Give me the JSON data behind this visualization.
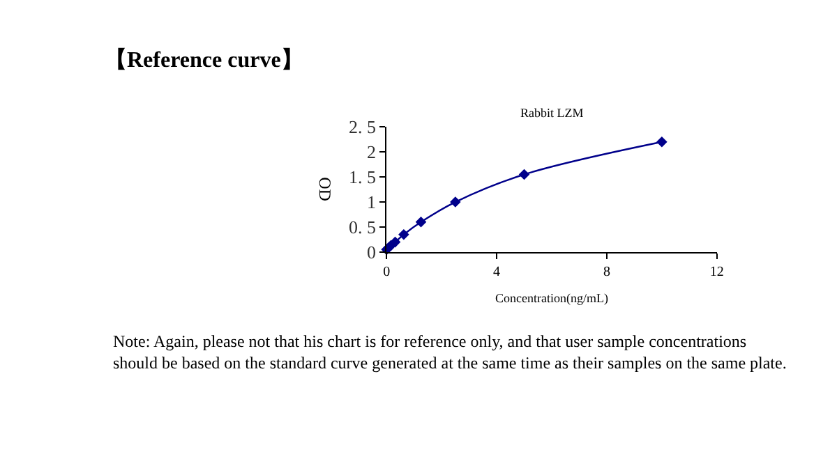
{
  "chart_data": {
    "type": "line",
    "title": "Rabbit LZM",
    "xlabel": "Concentration(ng/mL)",
    "ylabel": "OD",
    "annotations": [
      "【Reference curve】",
      "Note: Again, please not that his chart is for reference only, and that user sample concentrations should be based on the standard curve generated at the same time as their samples on the same plate."
    ],
    "x": [
      0,
      0.078,
      0.156,
      0.3125,
      0.625,
      1.25,
      2.5,
      5,
      10
    ],
    "series": [
      {
        "color": "#00008b",
        "values": [
          0.05,
          0.09,
          0.13,
          0.2,
          0.35,
          0.6,
          1.0,
          1.55,
          2.2
        ]
      }
    ],
    "xlim": [
      0,
      12
    ],
    "xticks": [
      0,
      4,
      8,
      12
    ],
    "ylim": [
      0,
      2.5
    ],
    "yticks": [
      0,
      {
        "value": 0.5,
        "label": "0. 5"
      },
      1,
      {
        "value": 1.5,
        "label": "1. 5"
      },
      2,
      {
        "value": 2.5,
        "label": "2. 5"
      }
    ],
    "marker": "diamond",
    "line_style": "solid",
    "legend": false
  }
}
